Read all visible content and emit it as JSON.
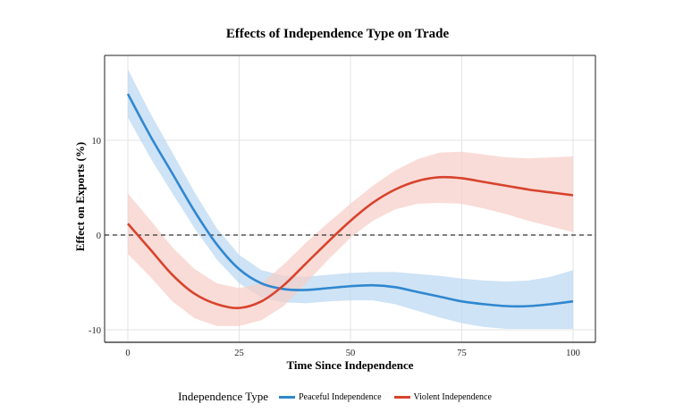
{
  "chart_data": {
    "type": "line",
    "title": "Effects of Independence Type on Trade",
    "xlabel": "Time Since Independence",
    "ylabel": "Effect on Exports (%)",
    "xlim": [
      -5,
      105
    ],
    "ylim": [
      -11.3,
      18.9
    ],
    "xticks": [
      0,
      25,
      50,
      75,
      100
    ],
    "yticks": [
      -10,
      0,
      10
    ],
    "xtick_labels": [
      "0",
      "25",
      "50",
      "75",
      "100"
    ],
    "ytick_labels": [
      "-10",
      "0",
      "10"
    ],
    "grid": true,
    "reference_line": {
      "y": 0,
      "style": "dashed"
    },
    "legend": {
      "title": "Independence Type",
      "placement": "bottom"
    },
    "x": [
      0,
      5,
      10,
      15,
      20,
      25,
      30,
      35,
      40,
      45,
      50,
      55,
      60,
      65,
      70,
      75,
      80,
      85,
      90,
      95,
      100
    ],
    "series": [
      {
        "name": "Peaceful Independence",
        "color": "#2f87d0",
        "band_color": "#b9d7f1",
        "values": [
          14.9,
          10.5,
          6.5,
          2.5,
          -1.0,
          -3.6,
          -5.1,
          -5.7,
          -5.8,
          -5.6,
          -5.4,
          -5.3,
          -5.5,
          -6.0,
          -6.5,
          -7.0,
          -7.3,
          -7.5,
          -7.5,
          -7.3,
          -7.0
        ],
        "lower": [
          12.4,
          8.2,
          4.4,
          0.7,
          -2.6,
          -5.1,
          -6.6,
          -7.1,
          -7.2,
          -7.0,
          -6.9,
          -6.9,
          -7.3,
          -8.0,
          -8.7,
          -9.3,
          -9.7,
          -9.9,
          -9.9,
          -9.9,
          -9.9
        ],
        "upper": [
          17.5,
          12.9,
          8.7,
          4.5,
          0.7,
          -2.1,
          -3.7,
          -4.3,
          -4.4,
          -4.2,
          -4.0,
          -3.9,
          -3.9,
          -4.1,
          -4.3,
          -4.6,
          -4.8,
          -4.9,
          -4.8,
          -4.4,
          -3.7
        ]
      },
      {
        "name": "Violent Independence",
        "color": "#d8432e",
        "band_color": "#f6cdc6",
        "values": [
          1.2,
          -1.5,
          -4.2,
          -6.2,
          -7.3,
          -7.7,
          -7.0,
          -5.3,
          -3.0,
          -0.7,
          1.5,
          3.4,
          4.8,
          5.7,
          6.1,
          6.0,
          5.6,
          5.2,
          4.8,
          4.5,
          4.2
        ],
        "lower": [
          -2.0,
          -4.4,
          -7.0,
          -8.8,
          -9.6,
          -9.6,
          -9.0,
          -7.5,
          -5.1,
          -2.6,
          -0.3,
          1.5,
          2.7,
          3.3,
          3.4,
          3.3,
          2.8,
          2.2,
          1.5,
          0.9,
          0.3
        ],
        "upper": [
          4.4,
          1.6,
          -1.3,
          -3.6,
          -5.1,
          -5.6,
          -5.1,
          -3.1,
          -0.8,
          1.3,
          3.3,
          5.2,
          6.8,
          8.0,
          8.7,
          8.8,
          8.5,
          8.2,
          8.1,
          8.2,
          8.3
        ]
      }
    ]
  }
}
